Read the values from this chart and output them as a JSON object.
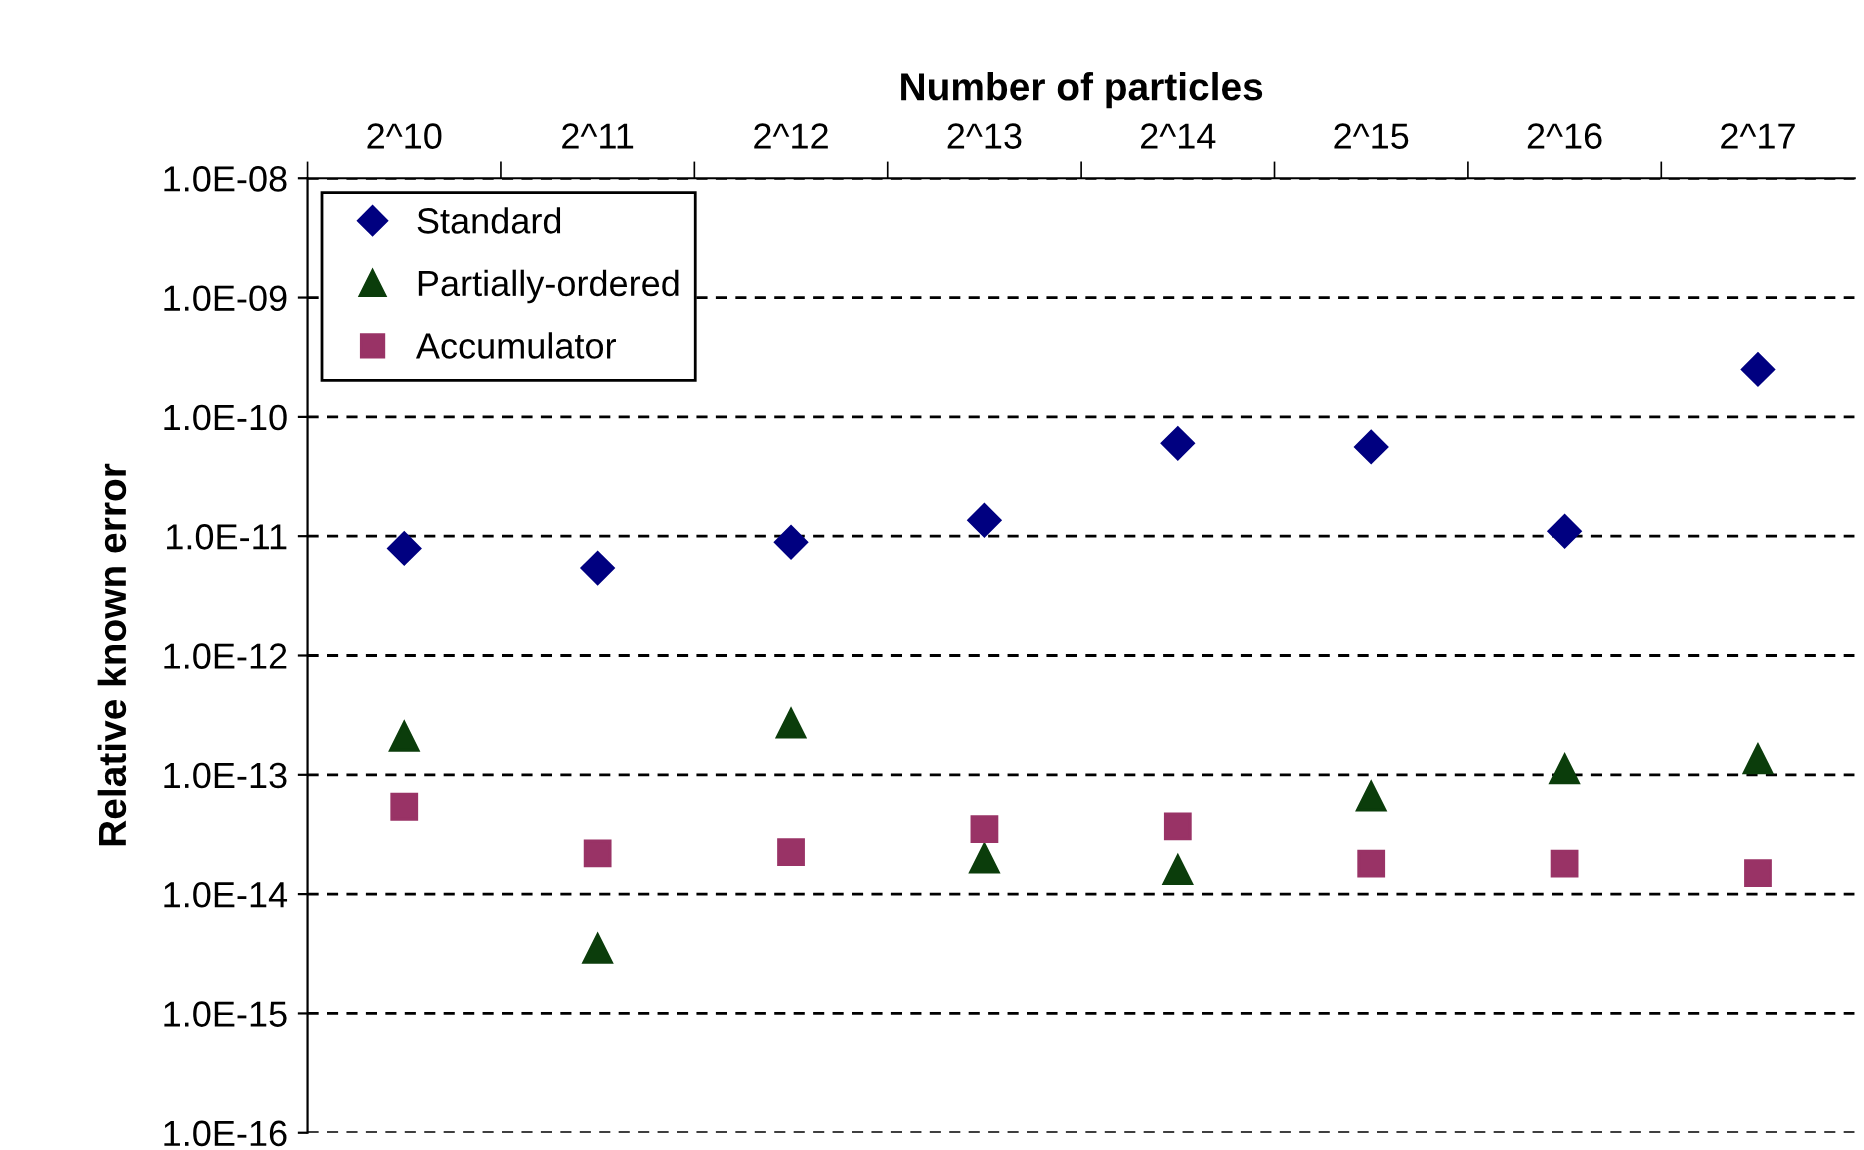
{
  "chart_data": {
    "type": "scatter",
    "xlabel": "Number of particles",
    "ylabel": "Relative known error",
    "categories": [
      "2^10",
      "2^11",
      "2^12",
      "2^13",
      "2^14",
      "2^15",
      "2^16",
      "2^17"
    ],
    "series": [
      {
        "name": "Standard",
        "color": "#000080",
        "marker": "diamond",
        "values": [
          7.9e-12,
          5.4e-12,
          8.9e-12,
          1.36e-11,
          6e-11,
          5.6e-11,
          1.1e-11,
          2.5e-10
        ]
      },
      {
        "name": "Partially-ordered",
        "color": "#0b3d0b",
        "marker": "triangle",
        "values": [
          2.1e-13,
          3.5e-15,
          2.7e-13,
          2e-14,
          1.6e-14,
          6.6e-14,
          1.12e-13,
          1.36e-13
        ]
      },
      {
        "name": "Accumulator",
        "color": "#993366",
        "marker": "square",
        "values": [
          5.4e-14,
          2.2e-14,
          2.25e-14,
          3.5e-14,
          3.7e-14,
          1.8e-14,
          1.8e-14,
          1.5e-14
        ]
      }
    ],
    "log": "y",
    "ylim": [
      1e-16,
      1e-08
    ],
    "yticks": [
      {
        "value": 1e-16,
        "label": "1.0E-16"
      },
      {
        "value": 1e-15,
        "label": "1.0E-15"
      },
      {
        "value": 1e-14,
        "label": "1.0E-14"
      },
      {
        "value": 1e-13,
        "label": "1.0E-13"
      },
      {
        "value": 1e-12,
        "label": "1.0E-12"
      },
      {
        "value": 1e-11,
        "label": "1.0E-11"
      },
      {
        "value": 1e-10,
        "label": "1.0E-10"
      },
      {
        "value": 1e-09,
        "label": "1.0E-09"
      },
      {
        "value": 1e-08,
        "label": "1.0E-08"
      }
    ],
    "grid": "y",
    "legend": "top left"
  }
}
